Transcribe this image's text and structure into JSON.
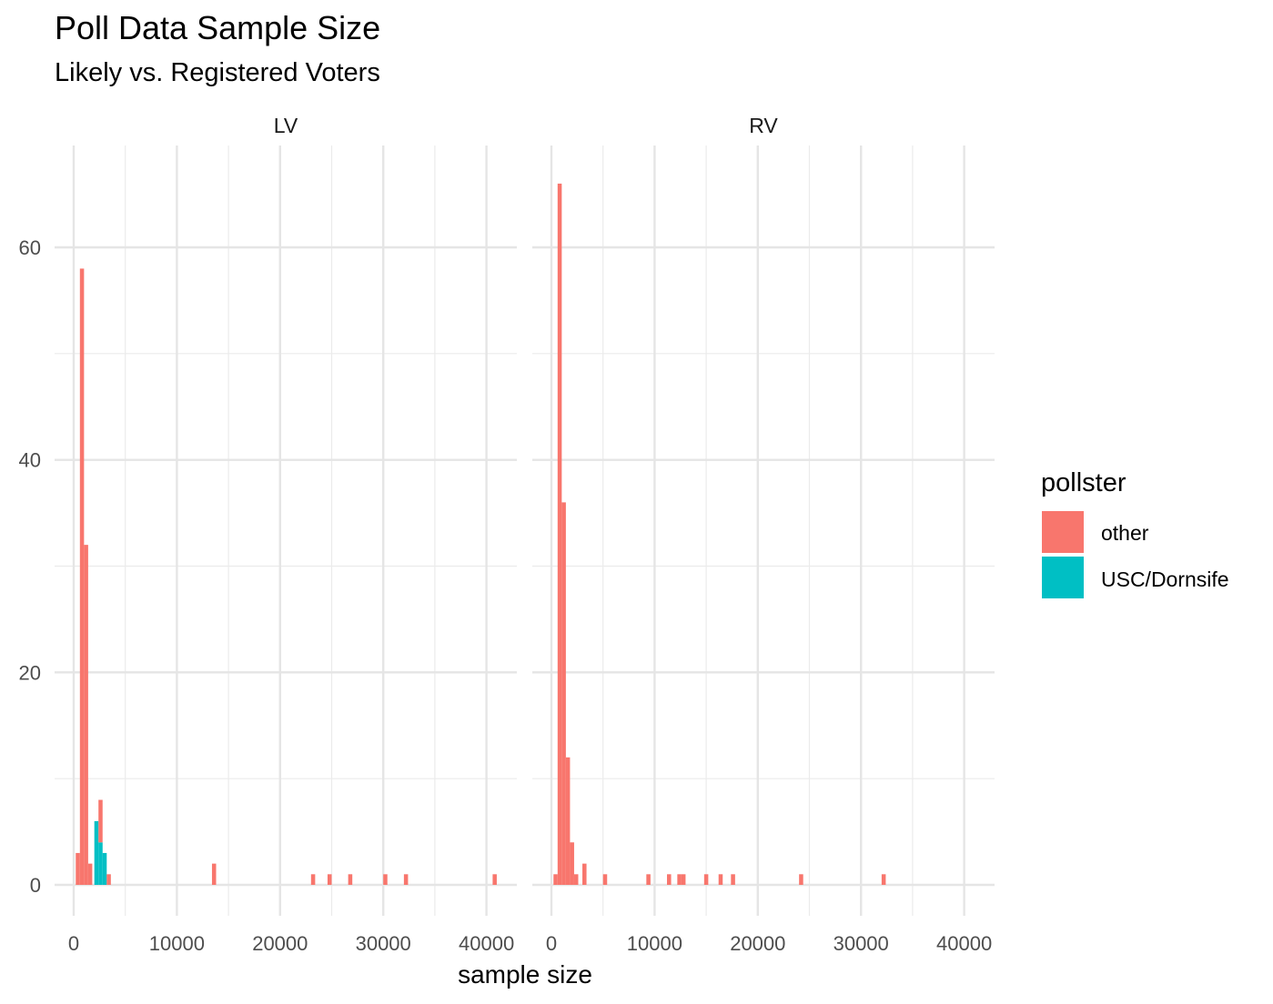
{
  "chart_data": {
    "type": "bar",
    "title": "Poll Data Sample Size",
    "subtitle": "Likely vs. Registered Voters",
    "xlabel": "sample size",
    "ylabel": "",
    "xlim": [
      0,
      41000
    ],
    "ylim": [
      0,
      66
    ],
    "x_ticks": [
      0,
      10000,
      20000,
      30000,
      40000
    ],
    "y_ticks": [
      0,
      20,
      40,
      60
    ],
    "x_tick_labels": [
      "0",
      "10000",
      "20000",
      "30000",
      "40000"
    ],
    "y_tick_labels": [
      "0",
      "20",
      "40",
      "60"
    ],
    "bin_width": 400,
    "grid": true,
    "legend": {
      "title": "pollster",
      "position": "right",
      "entries": [
        {
          "label": "other",
          "color": "#F8766D"
        },
        {
          "label": "USC/Dornsife",
          "color": "#00BFC4"
        }
      ]
    },
    "panels": [
      {
        "label": "LV",
        "series": [
          {
            "name": "USC/Dornsife",
            "bins": [
              [
                2200,
                6
              ],
              [
                2600,
                4
              ],
              [
                3000,
                3
              ]
            ]
          },
          {
            "name": "other",
            "bins": [
              [
                400,
                3
              ],
              [
                800,
                58
              ],
              [
                1200,
                32
              ],
              [
                1600,
                2
              ],
              [
                2200,
                0
              ],
              [
                2600,
                4
              ],
              [
                3400,
                1
              ],
              [
                13600,
                2
              ],
              [
                23200,
                1
              ],
              [
                24800,
                1
              ],
              [
                26800,
                1
              ],
              [
                30200,
                1
              ],
              [
                32200,
                1
              ],
              [
                40800,
                1
              ]
            ]
          }
        ]
      },
      {
        "label": "RV",
        "series": [
          {
            "name": "USC/Dornsife",
            "bins": []
          },
          {
            "name": "other",
            "bins": [
              [
                400,
                1
              ],
              [
                800,
                66
              ],
              [
                1200,
                36
              ],
              [
                1600,
                12
              ],
              [
                2000,
                4
              ],
              [
                2400,
                1
              ],
              [
                3200,
                2
              ],
              [
                5200,
                1
              ],
              [
                9400,
                1
              ],
              [
                11400,
                1
              ],
              [
                12400,
                1
              ],
              [
                12800,
                1
              ],
              [
                15000,
                1
              ],
              [
                16400,
                1
              ],
              [
                17600,
                1
              ],
              [
                24200,
                1
              ],
              [
                32200,
                1
              ]
            ]
          }
        ]
      }
    ]
  }
}
